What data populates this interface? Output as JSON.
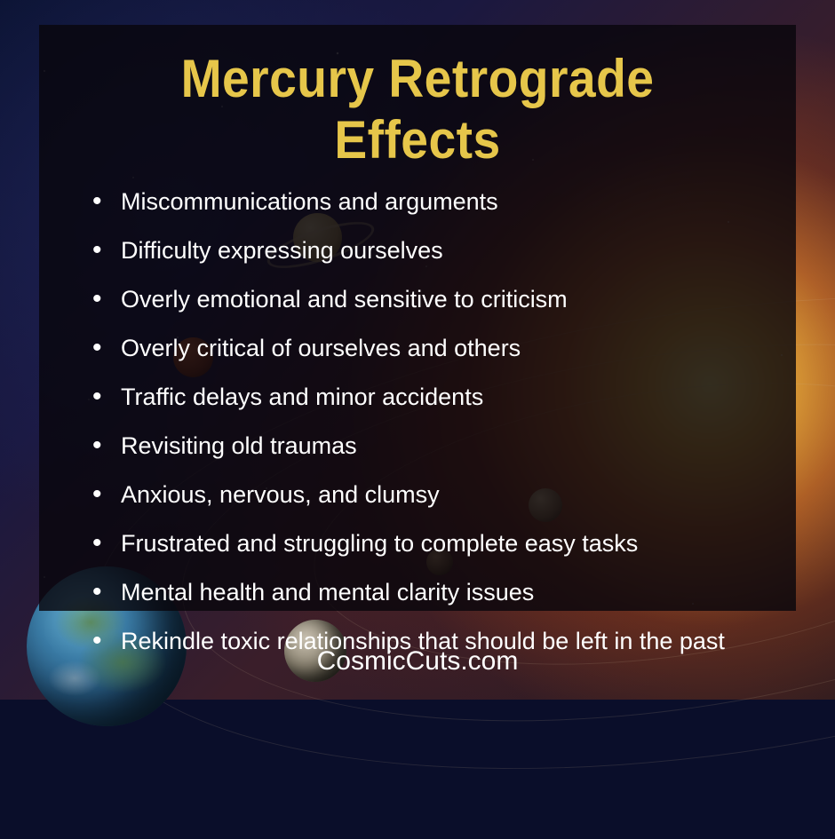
{
  "title": "Mercury Retrograde Effects",
  "title_color": "#e6c64a",
  "title_fontsize": 60,
  "effects": [
    "Miscommunications and arguments",
    "Difficulty expressing ourselves",
    "Overly emotional and sensitive to criticism",
    "Overly critical of ourselves and others",
    "Traffic delays and minor accidents",
    "Revisiting old traumas",
    "Anxious, nervous, and clumsy",
    "Frustrated and struggling to complete easy tasks",
    "Mental health and mental clarity issues",
    "Rekindle toxic relationships that should be left in the past"
  ],
  "list_text_color": "#ffffff",
  "list_fontsize": 27,
  "card_background": "rgba(8,6,12,0.82)",
  "footer": "CosmicCuts.com",
  "footer_color": "#ffffff",
  "footer_fontsize": 30
}
